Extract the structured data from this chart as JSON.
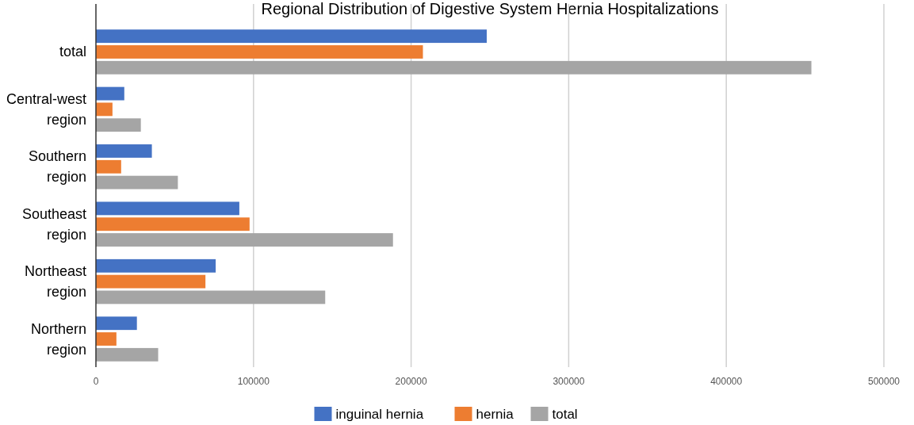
{
  "chart_data": {
    "type": "bar",
    "orientation": "horizontal",
    "title": "Regional Distribution of Digestive System Hernia Hospitalizations",
    "categories": [
      "total",
      "Central-west region",
      "Southern region",
      "Southeast region",
      "Northeast region",
      "Northern region"
    ],
    "series": [
      {
        "name": "inguinal hernia",
        "color": "#4472c4",
        "values": [
          248000,
          18000,
          35500,
          91000,
          76000,
          26000
        ]
      },
      {
        "name": "hernia",
        "color": "#ed7d31",
        "values": [
          207500,
          10500,
          16000,
          97500,
          69500,
          13000
        ]
      },
      {
        "name": "total",
        "color": "#a5a5a5",
        "values": [
          454000,
          28500,
          52000,
          188500,
          145500,
          39500
        ]
      }
    ],
    "xlim": [
      0,
      500000
    ],
    "xticks": [
      0,
      100000,
      200000,
      300000,
      400000,
      500000
    ],
    "grid": "x",
    "legend": "bottom"
  }
}
